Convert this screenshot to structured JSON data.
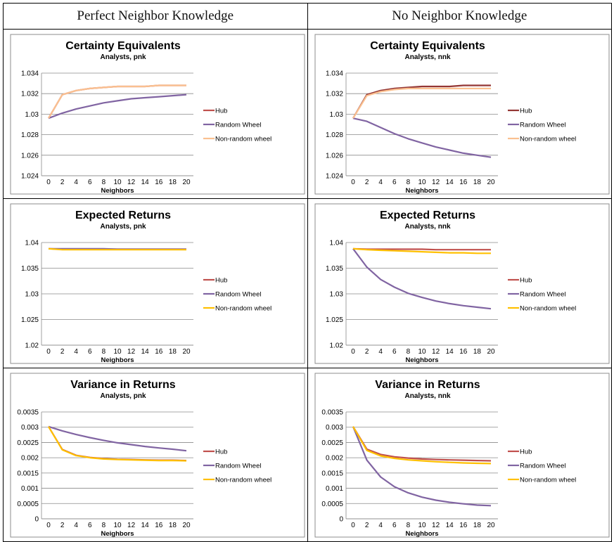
{
  "columns": [
    "Perfect Neighbor Knowledge",
    "No Neighbor Knowledge"
  ],
  "chart_data": [
    {
      "type": "line",
      "title": "Certainty Equivalents",
      "subtitle": "Analysts, pnk",
      "xlabel": "Neighbors",
      "ylabel": "",
      "ylim": [
        1.024,
        1.034
      ],
      "yticks": [
        "1.034",
        "1.032",
        "1.03",
        "1.028",
        "1.026",
        "1.024"
      ],
      "ytick_values": [
        1.034,
        1.032,
        1.03,
        1.028,
        1.026,
        1.024
      ],
      "x": [
        0,
        2,
        4,
        6,
        8,
        10,
        12,
        14,
        16,
        18,
        20
      ],
      "grid": true,
      "legend": "right",
      "series": [
        {
          "name": "Hub",
          "color": "#c0504d",
          "values": [
            1.0296,
            1.0319,
            1.0323,
            1.0325,
            1.0326,
            1.0327,
            1.0327,
            1.0327,
            1.0328,
            1.0328,
            1.0328
          ]
        },
        {
          "name": "Random Wheel",
          "color": "#8064a2",
          "values": [
            1.0296,
            1.0301,
            1.0305,
            1.0308,
            1.0311,
            1.0313,
            1.0315,
            1.0316,
            1.0317,
            1.0318,
            1.0319
          ]
        },
        {
          "name": "Non-random wheel",
          "color": "#fac090",
          "values": [
            1.0296,
            1.0319,
            1.0323,
            1.0325,
            1.0326,
            1.0327,
            1.0327,
            1.0327,
            1.0328,
            1.0328,
            1.0328
          ]
        }
      ]
    },
    {
      "type": "line",
      "title": "Certainty Equivalents",
      "subtitle": "Analysts, nnk",
      "xlabel": "Neighbors",
      "ylabel": "",
      "ylim": [
        1.024,
        1.034
      ],
      "yticks": [
        "1.034",
        "1.032",
        "1.03",
        "1.028",
        "1.026",
        "1.024"
      ],
      "ytick_values": [
        1.034,
        1.032,
        1.03,
        1.028,
        1.026,
        1.024
      ],
      "x": [
        0,
        2,
        4,
        6,
        8,
        10,
        12,
        14,
        16,
        18,
        20
      ],
      "grid": true,
      "legend": "right",
      "series": [
        {
          "name": "Hub",
          "color": "#943634",
          "values": [
            1.0296,
            1.0319,
            1.0323,
            1.0325,
            1.0326,
            1.0327,
            1.0327,
            1.0327,
            1.0328,
            1.0328,
            1.0328
          ]
        },
        {
          "name": "Random Wheel",
          "color": "#8064a2",
          "values": [
            1.0296,
            1.0293,
            1.0287,
            1.0281,
            1.0276,
            1.0272,
            1.0268,
            1.0265,
            1.0262,
            1.026,
            1.0258
          ]
        },
        {
          "name": "Non-random wheel",
          "color": "#fac090",
          "values": [
            1.0296,
            1.0318,
            1.0322,
            1.0324,
            1.0325,
            1.0325,
            1.0325,
            1.0325,
            1.0325,
            1.0325,
            1.0325
          ]
        }
      ]
    },
    {
      "type": "line",
      "title": "Expected Returns",
      "subtitle": "Analysts, pnk",
      "xlabel": "Neighbors",
      "ylabel": "",
      "ylim": [
        1.02,
        1.04
      ],
      "yticks": [
        "1.04",
        "1.035",
        "1.03",
        "1.025",
        "1.02"
      ],
      "ytick_values": [
        1.04,
        1.035,
        1.03,
        1.025,
        1.02
      ],
      "x": [
        0,
        2,
        4,
        6,
        8,
        10,
        12,
        14,
        16,
        18,
        20
      ],
      "grid": true,
      "legend": "right",
      "series": [
        {
          "name": "Hub",
          "color": "#c0504d",
          "values": [
            1.0388,
            1.0387,
            1.0387,
            1.0387,
            1.0387,
            1.0387,
            1.0387,
            1.0387,
            1.0387,
            1.0387,
            1.0387
          ]
        },
        {
          "name": "Random Wheel",
          "color": "#8064a2",
          "values": [
            1.0388,
            1.0388,
            1.0388,
            1.0388,
            1.0388,
            1.0387,
            1.0387,
            1.0387,
            1.0387,
            1.0387,
            1.0387
          ]
        },
        {
          "name": "Non-random wheel",
          "color": "#ffc000",
          "values": [
            1.0388,
            1.0386,
            1.0386,
            1.0386,
            1.0386,
            1.0386,
            1.0386,
            1.0386,
            1.0386,
            1.0386,
            1.0386
          ]
        }
      ]
    },
    {
      "type": "line",
      "title": "Expected Returns",
      "subtitle": "Analysts, nnk",
      "xlabel": "Neighbors",
      "ylabel": "",
      "ylim": [
        1.02,
        1.04
      ],
      "yticks": [
        "1.04",
        "1.035",
        "1.03",
        "1.025",
        "1.02"
      ],
      "ytick_values": [
        1.04,
        1.035,
        1.03,
        1.025,
        1.02
      ],
      "x": [
        0,
        2,
        4,
        6,
        8,
        10,
        12,
        14,
        16,
        18,
        20
      ],
      "grid": true,
      "legend": "right",
      "series": [
        {
          "name": "Hub",
          "color": "#c0504d",
          "values": [
            1.0388,
            1.0387,
            1.0387,
            1.0387,
            1.0387,
            1.0387,
            1.0386,
            1.0386,
            1.0386,
            1.0386,
            1.0386
          ]
        },
        {
          "name": "Random Wheel",
          "color": "#8064a2",
          "values": [
            1.0388,
            1.0352,
            1.0328,
            1.0313,
            1.0301,
            1.0293,
            1.0286,
            1.0281,
            1.0277,
            1.0274,
            1.0271
          ]
        },
        {
          "name": "Non-random wheel",
          "color": "#ffc000",
          "values": [
            1.0388,
            1.0386,
            1.0385,
            1.0384,
            1.0383,
            1.0382,
            1.0381,
            1.038,
            1.038,
            1.0379,
            1.0379
          ]
        }
      ]
    },
    {
      "type": "line",
      "title": "Variance in Returns",
      "subtitle": "Analysts, pnk",
      "xlabel": "Neighbors",
      "ylabel": "",
      "ylim": [
        0,
        0.0035
      ],
      "yticks": [
        "0.0035",
        "0.003",
        "0.0025",
        "0.002",
        "0.0015",
        "0.001",
        "0.0005",
        "0"
      ],
      "ytick_values": [
        0.0035,
        0.003,
        0.0025,
        0.002,
        0.0015,
        0.001,
        0.0005,
        0
      ],
      "x": [
        0,
        2,
        4,
        6,
        8,
        10,
        12,
        14,
        16,
        18,
        20
      ],
      "grid": true,
      "legend": "right",
      "series": [
        {
          "name": "Hub",
          "color": "#c0504d",
          "values": [
            0.00302,
            0.00227,
            0.00208,
            0.00201,
            0.00197,
            0.00195,
            0.00194,
            0.00193,
            0.00192,
            0.00192,
            0.00191
          ]
        },
        {
          "name": "Random Wheel",
          "color": "#8064a2",
          "values": [
            0.00302,
            0.00288,
            0.00276,
            0.00266,
            0.00257,
            0.00249,
            0.00243,
            0.00237,
            0.00232,
            0.00228,
            0.00223
          ]
        },
        {
          "name": "Non-random wheel",
          "color": "#ffc000",
          "values": [
            0.00302,
            0.00226,
            0.00207,
            0.002,
            0.00196,
            0.00194,
            0.00193,
            0.00192,
            0.00191,
            0.00191,
            0.0019
          ]
        }
      ]
    },
    {
      "type": "line",
      "title": "Variance in Returns",
      "subtitle": "Analysts, nnk",
      "xlabel": "Neighbors",
      "ylabel": "",
      "ylim": [
        0,
        0.0035
      ],
      "yticks": [
        "0.0035",
        "0.003",
        "0.0025",
        "0.002",
        "0.0015",
        "0.001",
        "0.0005",
        "0"
      ],
      "ytick_values": [
        0.0035,
        0.003,
        0.0025,
        0.002,
        0.0015,
        0.001,
        0.0005,
        0
      ],
      "x": [
        0,
        2,
        4,
        6,
        8,
        10,
        12,
        14,
        16,
        18,
        20
      ],
      "grid": true,
      "legend": "right",
      "series": [
        {
          "name": "Hub",
          "color": "#c0504d",
          "values": [
            0.00302,
            0.00228,
            0.00211,
            0.00203,
            0.00199,
            0.00196,
            0.00194,
            0.00193,
            0.00192,
            0.00191,
            0.0019
          ]
        },
        {
          "name": "Random Wheel",
          "color": "#8064a2",
          "values": [
            0.00302,
            0.00192,
            0.00137,
            0.00105,
            0.00085,
            0.00071,
            0.00061,
            0.00054,
            0.00049,
            0.00045,
            0.00043
          ]
        },
        {
          "name": "Non-random wheel",
          "color": "#ffc000",
          "values": [
            0.00302,
            0.00224,
            0.00206,
            0.00198,
            0.00193,
            0.0019,
            0.00187,
            0.00185,
            0.00183,
            0.00182,
            0.00181
          ]
        }
      ]
    }
  ]
}
